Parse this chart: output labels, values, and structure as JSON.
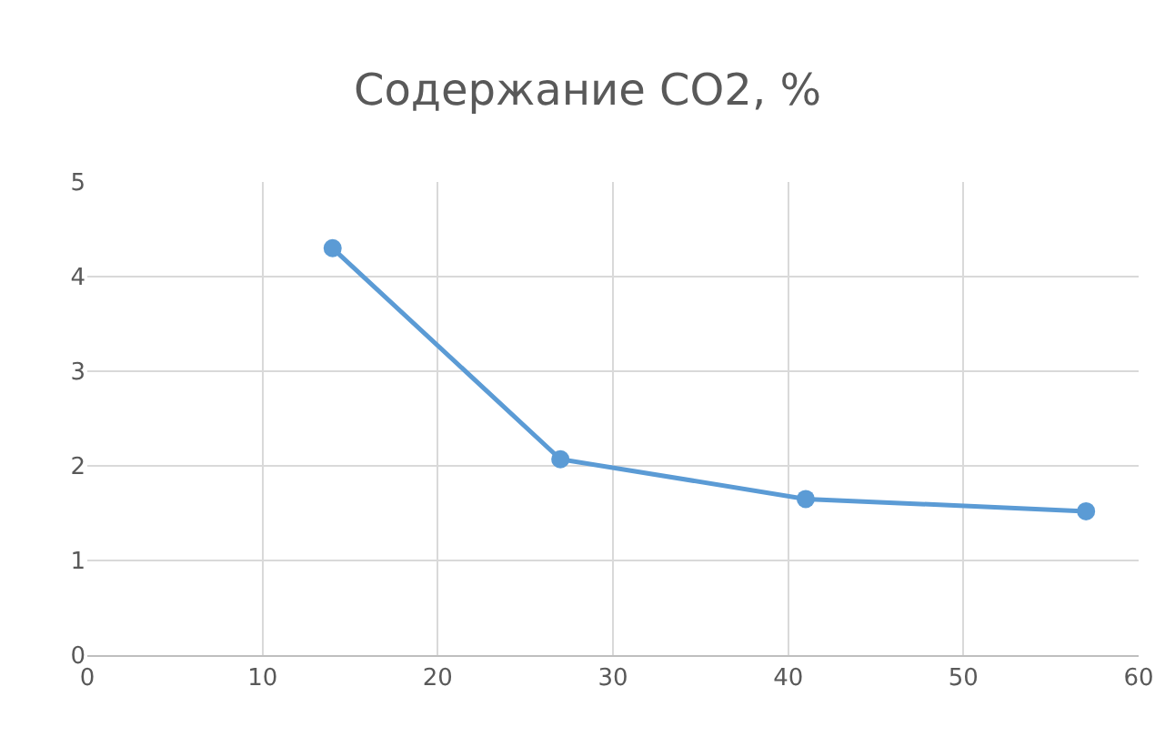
{
  "chart_data": {
    "type": "line",
    "title": "Содержание CO2, %",
    "x": [
      14,
      27,
      41,
      57
    ],
    "series": [
      {
        "color": "#5b9bd5",
        "values": [
          4.3,
          2.07,
          1.65,
          1.52
        ]
      }
    ],
    "line_style": "solid",
    "marker": "circle",
    "xlim": [
      0,
      60
    ],
    "xticks": [
      0,
      10,
      20,
      30,
      40,
      50,
      60
    ],
    "ylim": [
      0,
      5
    ],
    "yticks": [
      0,
      1,
      2,
      3,
      4,
      5
    ],
    "grid": true,
    "legend": false
  }
}
